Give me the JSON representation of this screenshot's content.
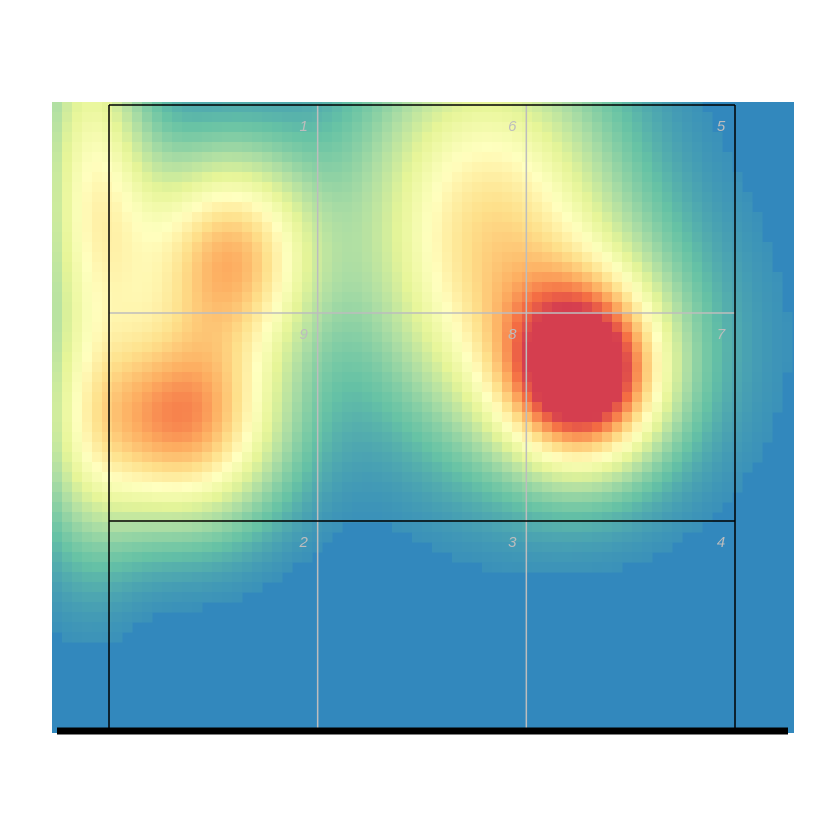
{
  "chart_data": {
    "type": "heatmap",
    "title": "",
    "xlabel": "",
    "ylabel": "",
    "colormap": [
      "#3288bd",
      "#66c2a5",
      "#abdda4",
      "#e6f598",
      "#ffffbf",
      "#fee08b",
      "#fdae61",
      "#f46d43",
      "#d53e4f"
    ],
    "background": "#3288bd",
    "zone_grid": {
      "rows": [
        [
          "1",
          "6",
          "5"
        ],
        [
          "9",
          "8",
          "7"
        ],
        [
          "2",
          "3",
          "4"
        ]
      ],
      "strike_zone": "rows 1-2",
      "line_color": "#bdbdbd",
      "border_color": "#000000"
    },
    "zones": [
      {
        "label": "1",
        "row": 0,
        "col": 0
      },
      {
        "label": "6",
        "row": 0,
        "col": 1
      },
      {
        "label": "5",
        "row": 0,
        "col": 2
      },
      {
        "label": "9",
        "row": 1,
        "col": 0
      },
      {
        "label": "8",
        "row": 1,
        "col": 1
      },
      {
        "label": "7",
        "row": 1,
        "col": 2
      },
      {
        "label": "2",
        "row": 2,
        "col": 0
      },
      {
        "label": "3",
        "row": 2,
        "col": 1
      },
      {
        "label": "4",
        "row": 2,
        "col": 2
      }
    ],
    "hotspots": [
      {
        "zone_x": 0.58,
        "zone_y": 0.73,
        "sx": 0.28,
        "sy": 0.34,
        "intensity": 0.7
      },
      {
        "zone_x": 0.35,
        "zone_y": 1.52,
        "sx": 0.32,
        "sy": 0.33,
        "intensity": 0.78
      },
      {
        "zone_x": 1.8,
        "zone_y": 0.52,
        "sx": 0.42,
        "sy": 0.58,
        "intensity": 0.55
      },
      {
        "zone_x": 2.27,
        "zone_y": 1.3,
        "sx": 0.24,
        "sy": 0.28,
        "intensity": 0.98
      },
      {
        "zone_x": 2.2,
        "zone_y": 1.15,
        "sx": 0.45,
        "sy": 0.45,
        "intensity": 0.3
      },
      {
        "zone_x": -0.1,
        "zone_y": 0.1,
        "sx": 0.18,
        "sy": 0.7,
        "intensity": 0.32
      },
      {
        "zone_x": 0.0,
        "zone_y": 0.6,
        "sx": 0.2,
        "sy": 0.4,
        "intensity": 0.25
      },
      {
        "zone_x": -0.1,
        "zone_y": 1.6,
        "sx": 0.18,
        "sy": 0.45,
        "intensity": 0.22
      }
    ]
  }
}
